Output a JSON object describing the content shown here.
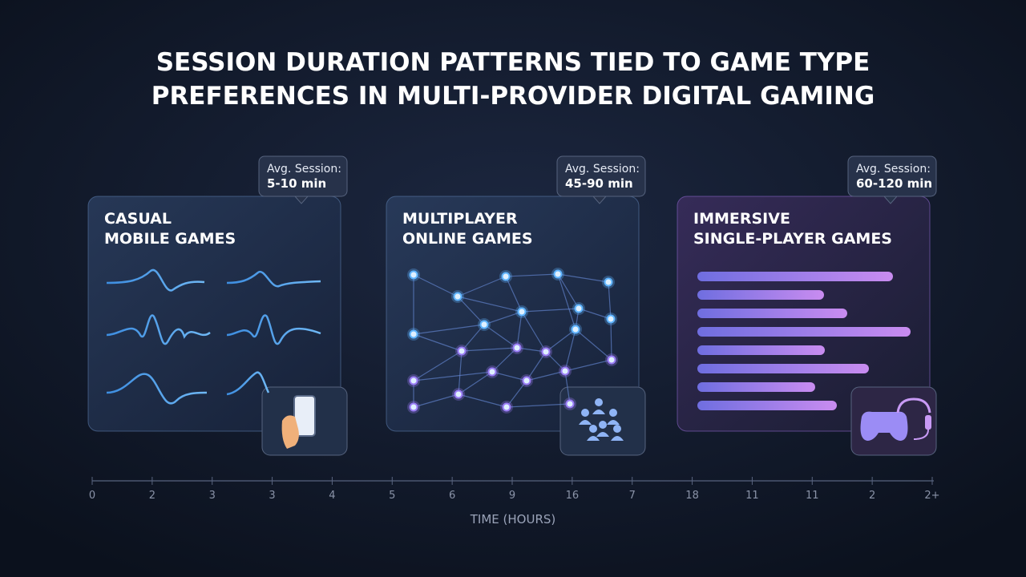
{
  "header": {
    "title": [
      "SESSION DURATION PATTERNS TIED TO GAME TYPE",
      "PREFERENCES IN MULTI-PROVIDER DIGITAL GAMING"
    ]
  },
  "cards": [
    {
      "title": [
        "CASUAL",
        "MOBILE GAMES"
      ],
      "badge_label": "Avg. Session:",
      "badge_value": "5-10 min"
    },
    {
      "title": [
        "MULTIPLAYER",
        "ONLINE GAMES"
      ],
      "badge_label": "Avg. Session:",
      "badge_value": "45-90 min"
    },
    {
      "title": [
        "IMMERSIVE",
        "SINGLE-PLAYER GAMES"
      ],
      "badge_label": "Avg. Session:",
      "badge_value": "60-120 min"
    }
  ],
  "axis": {
    "ticks": [
      "0",
      "2",
      "3",
      "3",
      "4",
      "5",
      "6",
      "9",
      "16",
      "7",
      "18",
      "11",
      "11",
      "2",
      "2+"
    ],
    "label": "TIME (HOURS)"
  }
}
